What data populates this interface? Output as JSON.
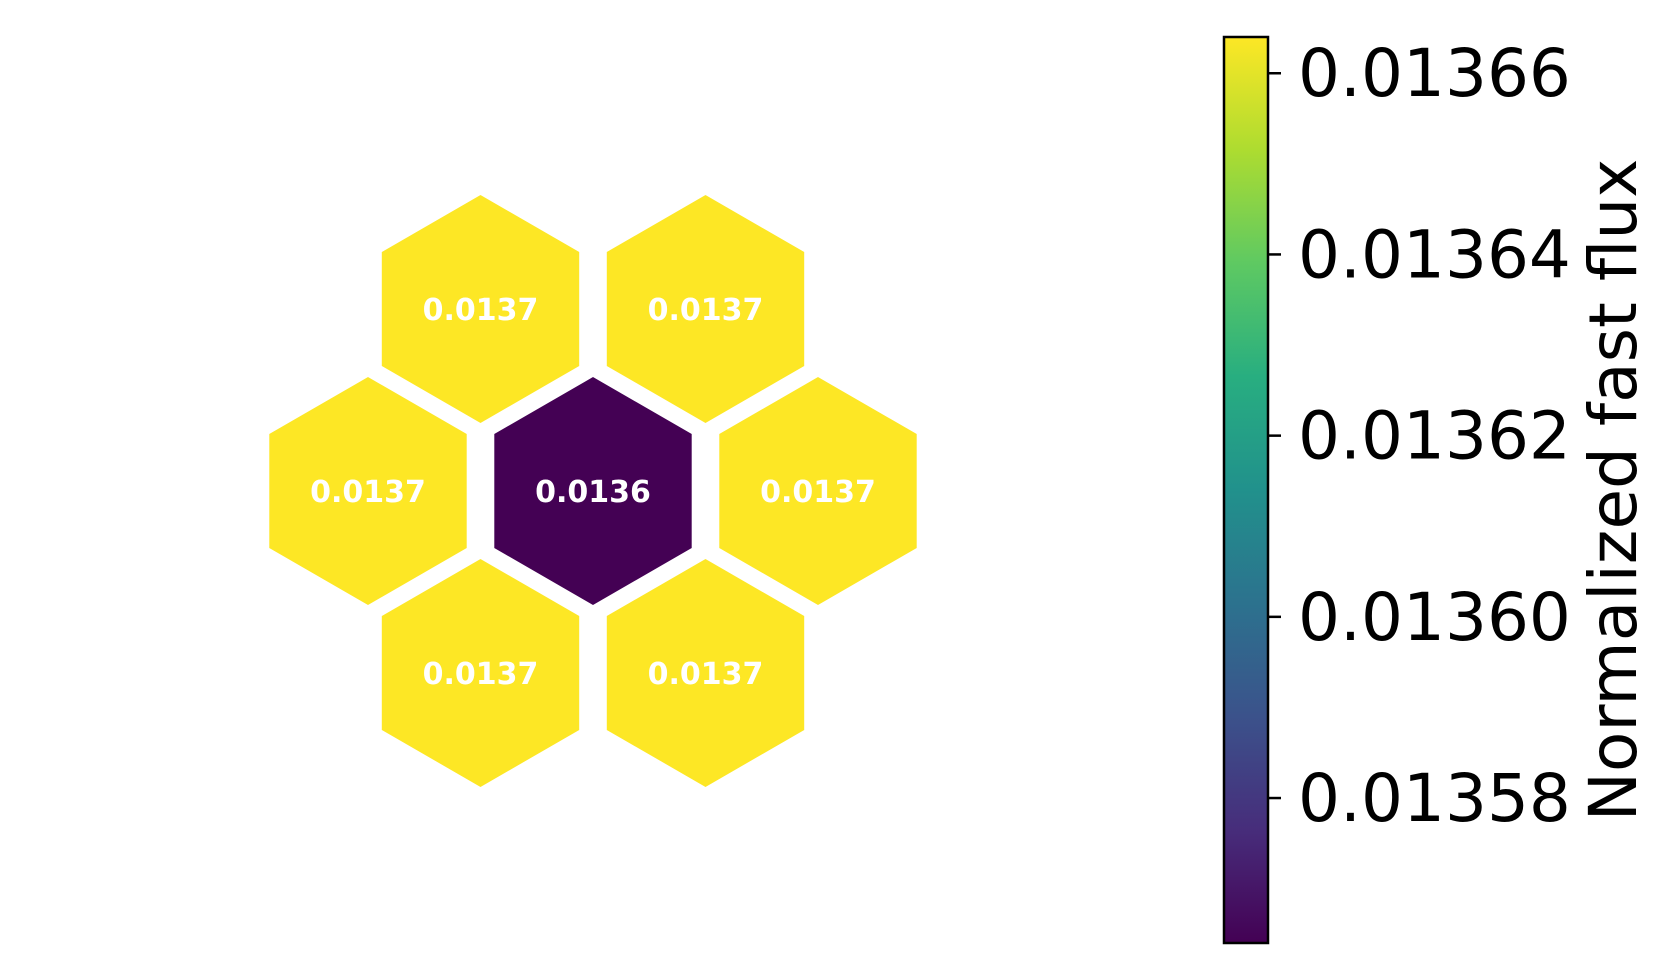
{
  "chart_data": {
    "type": "heatmap",
    "layout": "hexagonal",
    "cells": [
      {
        "name": "top-left",
        "value": 0.013664,
        "label": "0.0137"
      },
      {
        "name": "top-right",
        "value": 0.013664,
        "label": "0.0137"
      },
      {
        "name": "middle-left",
        "value": 0.013664,
        "label": "0.0137"
      },
      {
        "name": "center",
        "value": 0.013564,
        "label": "0.0136"
      },
      {
        "name": "middle-right",
        "value": 0.013664,
        "label": "0.0137"
      },
      {
        "name": "bottom-left",
        "value": 0.013664,
        "label": "0.0137"
      },
      {
        "name": "bottom-right",
        "value": 0.013664,
        "label": "0.0137"
      }
    ],
    "colorbar": {
      "label": "Normalized fast flux",
      "colormap": "viridis",
      "range": [
        0.013564,
        0.013664
      ],
      "ticks": [
        {
          "value": 0.01358,
          "label": "0.01358"
        },
        {
          "value": 0.0136,
          "label": "0.01360"
        },
        {
          "value": 0.01362,
          "label": "0.01362"
        },
        {
          "value": 0.01364,
          "label": "0.01364"
        },
        {
          "value": 0.01366,
          "label": "0.01366"
        }
      ]
    },
    "colors": {
      "high": "#fde725",
      "low": "#440154",
      "cell_border": "#ffffff",
      "cell_label": "#ffffff"
    }
  }
}
